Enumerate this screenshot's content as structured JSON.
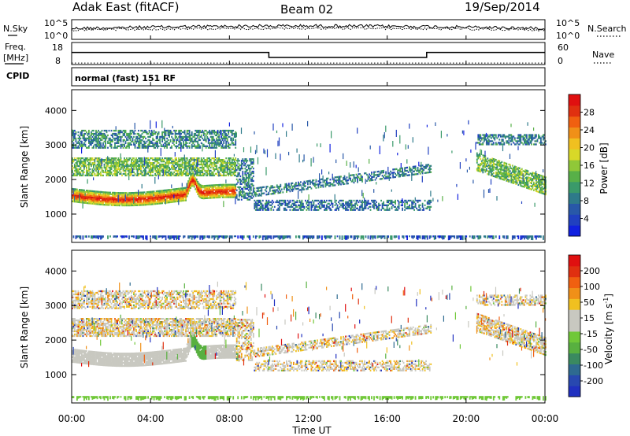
{
  "header": {
    "radar": "Adak East (fitACF)",
    "beam": "Beam 02",
    "date": "19/Sep/2014"
  },
  "chart_data": [
    {
      "panel": "noise",
      "type": "line",
      "left_axis": {
        "label": "N.Sky",
        "ticks": [
          "10^5",
          "10^0"
        ]
      },
      "right_axis": {
        "label": "N.Search",
        "ticks": [
          "10^5",
          "10^0"
        ]
      },
      "x": {
        "ticks": [
          "00:00",
          "04:00",
          "08:00",
          "12:00",
          "16:00",
          "20:00",
          "00:00"
        ]
      }
    },
    {
      "panel": "frequency_nave",
      "type": "line",
      "left_axis": {
        "label_line1": "Freq.",
        "label_line2": "[MHz]",
        "ticks": [
          18,
          8
        ],
        "range": [
          8,
          18
        ]
      },
      "right_axis": {
        "label": "Nave",
        "ticks": [
          60,
          0
        ],
        "range": [
          0,
          60
        ]
      },
      "freq_segments": [
        {
          "x0": 0,
          "x1": 10,
          "value": 13.5
        },
        {
          "x0": 10,
          "x1": 18,
          "value": 11.2
        },
        {
          "x0": 18,
          "x1": 24,
          "value": 13.5
        }
      ],
      "nave_level": 4
    },
    {
      "panel": "cpid",
      "label": "CPID",
      "text": "normal (fast) 151 RF"
    },
    {
      "panel": "power",
      "type": "heatmap",
      "ylabel": "Slant Range [km]",
      "yticks": [
        1000,
        2000,
        3000,
        4000
      ],
      "ylim": [
        180,
        4600
      ],
      "xlim": [
        0,
        24
      ],
      "colorbar": {
        "label": "Power [dB]",
        "ticks": [
          4,
          8,
          12,
          16,
          20,
          24,
          28
        ],
        "range": [
          0,
          32
        ],
        "colors": [
          "#1020e0",
          "#2040c0",
          "#2858a8",
          "#2e7a8a",
          "#3a9a6a",
          "#58b048",
          "#90c838",
          "#d8d828",
          "#f0c020",
          "#f09018",
          "#f06010",
          "#e03010",
          "#e01010"
        ]
      }
    },
    {
      "panel": "velocity",
      "type": "heatmap",
      "ylabel": "Slant Range [km]",
      "yticks": [
        1000,
        2000,
        3000,
        4000
      ],
      "ylim": [
        180,
        4600
      ],
      "xlim": [
        0,
        24
      ],
      "colorbar": {
        "label": "Velocity [m s",
        "label_sup": "-1",
        "label_end": "]",
        "ticks": [
          200,
          100,
          50,
          15,
          -15,
          -50,
          -100,
          -200
        ],
        "colors": [
          "#2030c0",
          "#2848b0",
          "#2e6a90",
          "#3a8a60",
          "#58b040",
          "#70c838",
          "#c8c8c0",
          "#c8c8c0",
          "#f0c020",
          "#f09018",
          "#f06010",
          "#e03010",
          "#e01010"
        ]
      }
    }
  ],
  "xaxis": {
    "label": "Time UT",
    "ticks": [
      "00:00",
      "04:00",
      "08:00",
      "12:00",
      "16:00",
      "20:00",
      "00:00"
    ]
  }
}
